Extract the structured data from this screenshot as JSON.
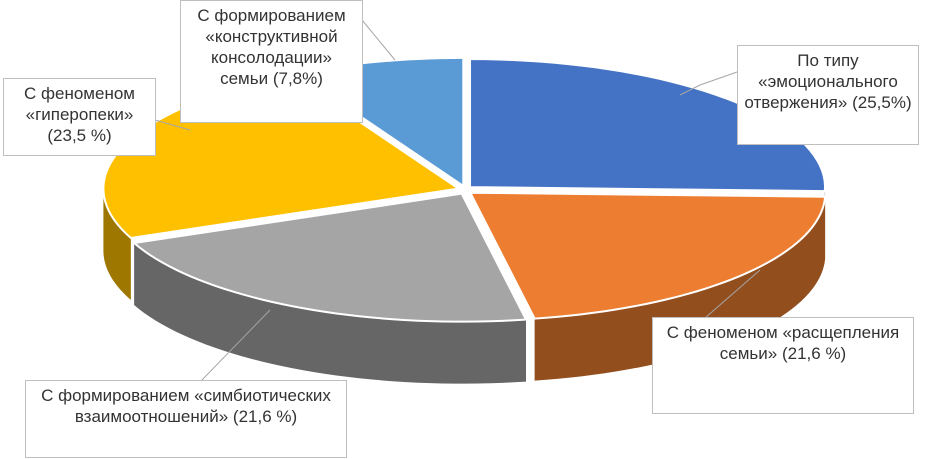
{
  "chart_data": {
    "type": "pie",
    "categories": [
      "По типу «эмоционального отвержения»",
      "С феноменом «расщепления семьи»",
      "С формированием «симбиотических взаимоотношений»",
      "С феноменом «гиперопеки»",
      "С формированием «конструктивной консолодации» семьи"
    ],
    "values": [
      25.5,
      21.6,
      21.6,
      23.5,
      7.8
    ],
    "value_labels": [
      "(25,5%)",
      "(21,6 %)",
      "(21,6 %)",
      "(23,5 %)",
      "(7,8%)"
    ],
    "colors": [
      "#4472c4",
      "#ed7d31",
      "#a5a5a5",
      "#ffc000",
      "#5b9bd5"
    ]
  }
}
